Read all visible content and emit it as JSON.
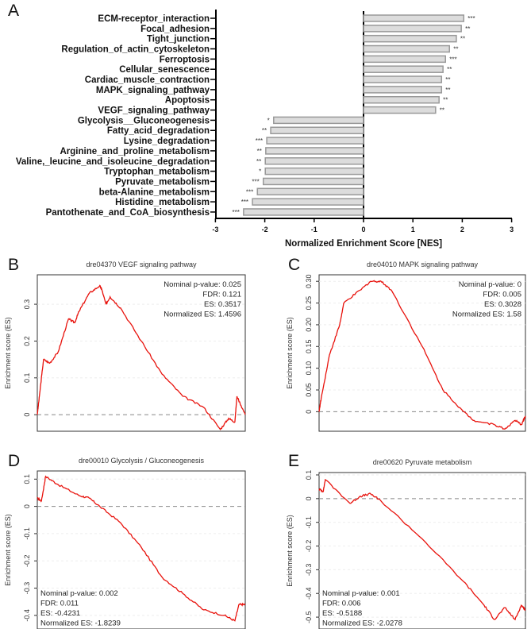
{
  "chart_data": [
    {
      "panel": "A",
      "type": "bar",
      "orientation": "horizontal",
      "xlabel": "Normalized  Enrichment Score [NES]",
      "xlim": [
        -3,
        3
      ],
      "xticks": [
        "-3",
        "-2",
        "-1",
        "0",
        "1",
        "2",
        "3"
      ],
      "categories": [
        "ECM-receptor_interaction",
        "Focal_adhesion",
        "Tight_junction",
        "Regulation_of_actin_cytoskeleton",
        "Ferroptosis",
        "Cellular_senescence",
        "Cardiac_muscle_contraction",
        "MAPK_signaling_pathway",
        "Apoptosis",
        "VEGF_signaling_pathway",
        "Glycolysis__Gluconeogenesis",
        "Fatty_acid_degradation",
        "Lysine_degradation",
        "Arginine_and_proline_metabolism",
        "Valine,_leucine_and_isoleucine_degradation",
        "Tryptophan_metabolism",
        "Pyruvate_metabolism",
        "beta-Alanine_metabolism",
        "Histidine_metabolism",
        "Pantothenate_and_CoA_biosynthesis"
      ],
      "values": [
        2.03,
        1.98,
        1.88,
        1.74,
        1.66,
        1.61,
        1.58,
        1.58,
        1.53,
        1.46,
        -1.82,
        -1.88,
        -1.96,
        -1.98,
        -1.99,
        -1.99,
        -2.03,
        -2.15,
        -2.25,
        -2.43
      ],
      "significance": [
        "***",
        "**",
        "**",
        "**",
        "***",
        "**",
        "**",
        "**",
        "**",
        "**",
        "*",
        "**",
        "***",
        "**",
        "**",
        "*",
        "***",
        "***",
        "***",
        "***"
      ]
    },
    {
      "panel": "B",
      "type": "line",
      "title": "dre04370 VEGF signaling pathway",
      "ylabel": "Enrichment score (ES)",
      "ylim": [
        -0.045,
        0.38
      ],
      "yticks": [
        "0",
        "0.1",
        "0.2",
        "0.3"
      ],
      "ytick_values": [
        0,
        0.1,
        0.2,
        0.3
      ],
      "annotations": [
        "Nominal p-value: 0.025",
        "FDR: 0.121",
        "ES: 0.3517",
        "Normalized ES: 1.4596"
      ],
      "annotation_pos": "top-right",
      "x": [
        0,
        0.01,
        0.03,
        0.06,
        0.1,
        0.15,
        0.18,
        0.2,
        0.25,
        0.3,
        0.31,
        0.33,
        0.35,
        0.4,
        0.5,
        0.6,
        0.7,
        0.8,
        0.88,
        0.92,
        0.95,
        0.96,
        1
      ],
      "y": [
        0,
        0.05,
        0.15,
        0.14,
        0.17,
        0.26,
        0.25,
        0.28,
        0.33,
        0.35,
        0.34,
        0.3,
        0.32,
        0.29,
        0.2,
        0.11,
        0.05,
        0.02,
        -0.04,
        -0.01,
        -0.02,
        0.05,
        0
      ]
    },
    {
      "panel": "C",
      "type": "line",
      "title": "dre04010 MAPK signaling pathway",
      "ylabel": "Enrichment score (ES)",
      "ylim": [
        -0.045,
        0.315
      ],
      "yticks": [
        "0",
        "0.05",
        "0.10",
        "0.15",
        "0.20",
        "0.25",
        "0.30"
      ],
      "ytick_values": [
        0,
        0.05,
        0.1,
        0.15,
        0.2,
        0.25,
        0.3
      ],
      "annotations": [
        "Nominal p-value: 0",
        "FDR: 0.005",
        "ES: 0.3028",
        "Normalized ES: 1.58"
      ],
      "annotation_pos": "top-right",
      "x": [
        0,
        0.01,
        0.05,
        0.1,
        0.12,
        0.2,
        0.25,
        0.3,
        0.35,
        0.5,
        0.6,
        0.7,
        0.75,
        0.85,
        0.9,
        0.95,
        0.98,
        1
      ],
      "y": [
        0,
        0.03,
        0.13,
        0.2,
        0.25,
        0.28,
        0.3,
        0.3,
        0.28,
        0.15,
        0.05,
        0,
        -0.02,
        -0.03,
        -0.04,
        -0.02,
        -0.03,
        -0.01
      ]
    },
    {
      "panel": "D",
      "type": "line",
      "title": "dre00010 Glycolysis / Gluconeogenesis",
      "ylabel": "Enrichment score (ES)",
      "ylim": [
        -0.45,
        0.13
      ],
      "yticks": [
        "0.1",
        "0",
        "-0.1",
        "-0.2",
        "-0.3",
        "-0.4"
      ],
      "ytick_values": [
        0.1,
        0,
        -0.1,
        -0.2,
        -0.3,
        -0.4
      ],
      "annotations": [
        "Nominal p-value: 0.002",
        "FDR: 0.011",
        "ES: -0.4231",
        "Normalized ES: -1.8239"
      ],
      "annotation_pos": "bottom-left",
      "x": [
        0,
        0.02,
        0.04,
        0.1,
        0.2,
        0.25,
        0.3,
        0.4,
        0.5,
        0.6,
        0.7,
        0.8,
        0.9,
        0.95,
        0.97,
        1
      ],
      "y": [
        0.03,
        0.02,
        0.11,
        0.08,
        0.04,
        0.03,
        0,
        -0.06,
        -0.15,
        -0.26,
        -0.32,
        -0.38,
        -0.4,
        -0.42,
        -0.36,
        -0.36
      ]
    },
    {
      "panel": "E",
      "type": "line",
      "title": "dre00620 Pyruvate metabolism",
      "ylabel": "Enrichment score (ES)",
      "ylim": [
        -0.55,
        0.11
      ],
      "yticks": [
        "0.1",
        "0",
        "-0.1",
        "-0.2",
        "-0.3",
        "-0.4",
        "-0.5"
      ],
      "ytick_values": [
        0.1,
        0,
        -0.1,
        -0.2,
        -0.3,
        -0.4,
        -0.5
      ],
      "annotations": [
        "Nominal p-value: 0.001",
        "FDR: 0.006",
        "ES: -0.5188",
        "Normalized ES: -2.0278"
      ],
      "annotation_pos": "bottom-left",
      "x": [
        0,
        0.02,
        0.03,
        0.15,
        0.2,
        0.25,
        0.3,
        0.5,
        0.7,
        0.8,
        0.85,
        0.9,
        0.95,
        0.98,
        1
      ],
      "y": [
        0.04,
        0.03,
        0.08,
        -0.02,
        0.01,
        0.02,
        -0.01,
        -0.17,
        -0.35,
        -0.45,
        -0.51,
        -0.46,
        -0.51,
        -0.45,
        -0.47
      ]
    }
  ],
  "colors": {
    "bar_fill": "#dcdcdc",
    "bar_stroke": "#999999",
    "line": "#e8120c",
    "zero_line": "#888888"
  }
}
